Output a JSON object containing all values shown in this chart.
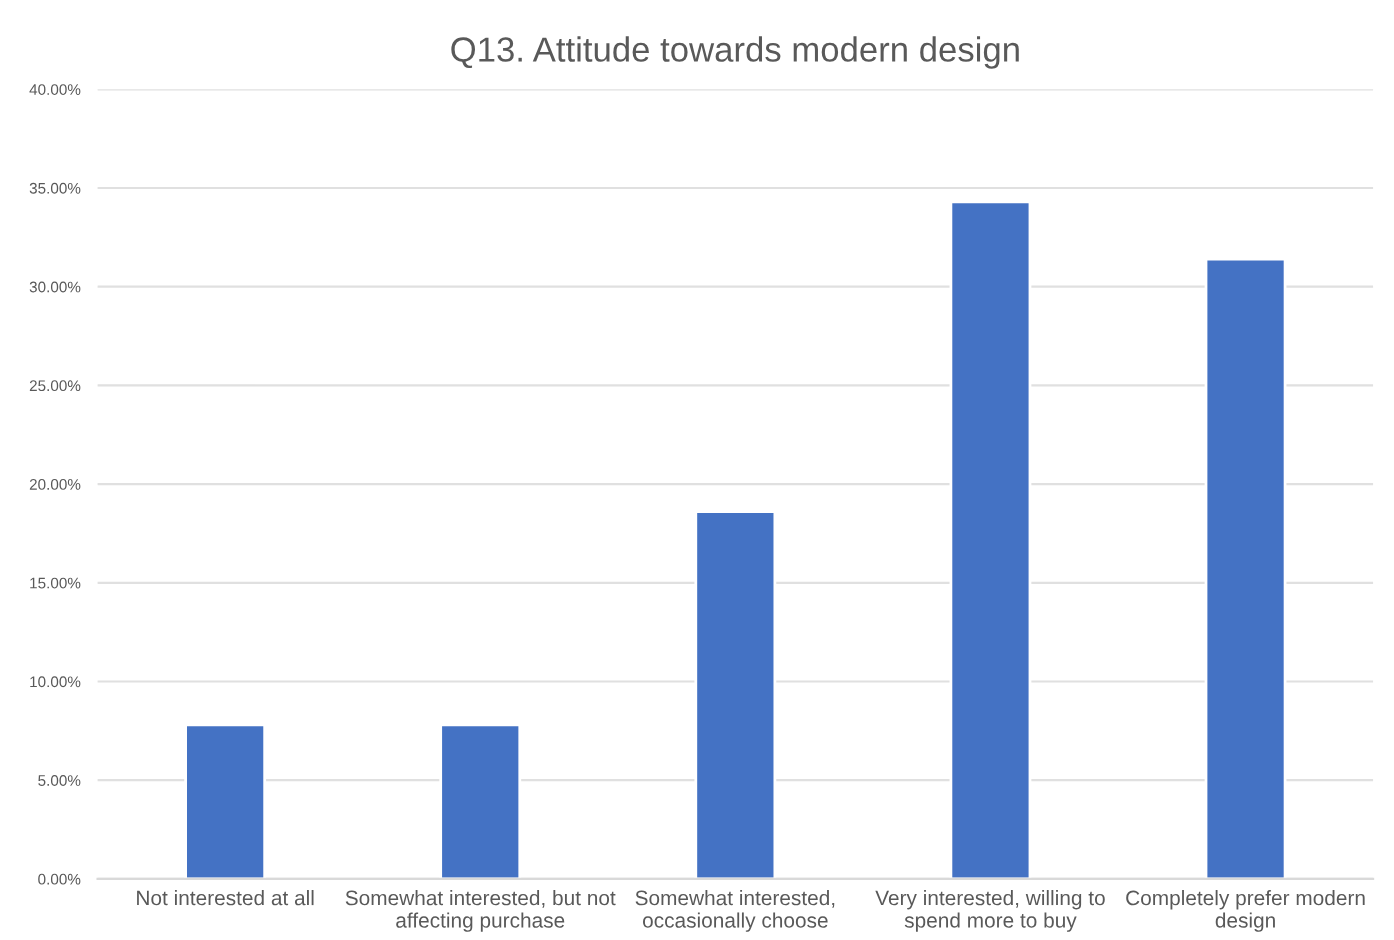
{
  "chart_data": {
    "type": "bar",
    "title": "Q13. Attitude towards modern design",
    "categories": [
      "Not interested at all",
      "Somewhat interested, but not\naffecting purchase",
      "Somewhat interested,\noccasionally choose",
      "Very interested, willing to\nspend more to buy",
      "Completely prefer modern\ndesign"
    ],
    "values": [
      7.8,
      7.8,
      18.6,
      34.3,
      31.4
    ],
    "color": "#4472c4",
    "ylim": [
      0,
      40
    ],
    "yticks": [
      {
        "value": 0,
        "label": "0.00%"
      },
      {
        "value": 5,
        "label": "5.00%"
      },
      {
        "value": 10,
        "label": "10.00%"
      },
      {
        "value": 15,
        "label": "15.00%"
      },
      {
        "value": 20,
        "label": "20.00%"
      },
      {
        "value": 25,
        "label": "25.00%"
      },
      {
        "value": 30,
        "label": "30.00%"
      },
      {
        "value": 35,
        "label": "35.00%"
      },
      {
        "value": 40,
        "label": "40.00%"
      }
    ],
    "grid": "y"
  }
}
